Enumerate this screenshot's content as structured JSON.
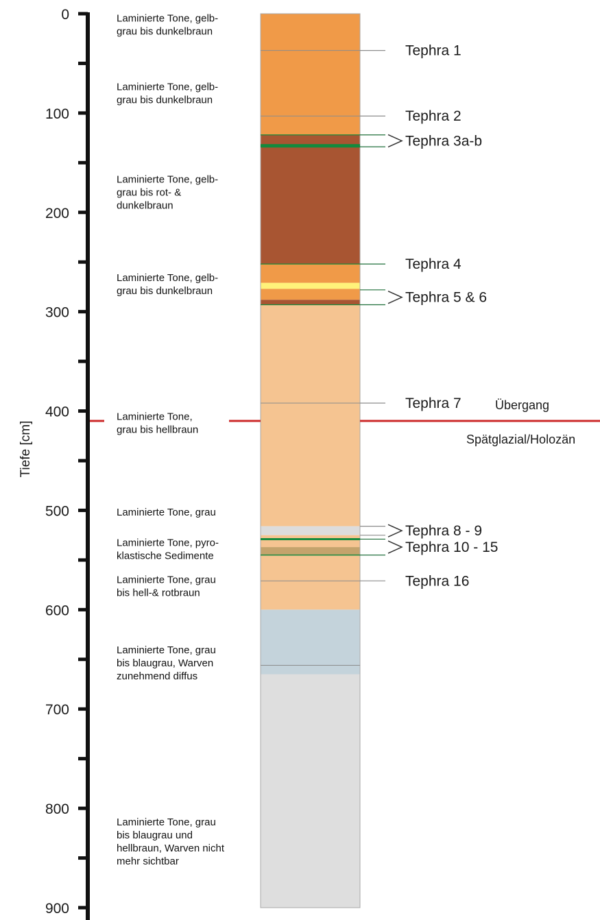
{
  "axis": {
    "title": "Tiefe  [cm]",
    "min": 0,
    "max": 900,
    "tick_labels": [
      "0",
      "100",
      "200",
      "300",
      "400",
      "500",
      "600",
      "700",
      "800",
      "900"
    ],
    "major_values": [
      0,
      100,
      200,
      300,
      400,
      500,
      600,
      700,
      800,
      900
    ],
    "minor_values": [
      50,
      150,
      250,
      350,
      450,
      550,
      650,
      750,
      850
    ]
  },
  "layers": [
    {
      "top": 0,
      "bottom": 122,
      "color": "#F09A48"
    },
    {
      "top": 122,
      "bottom": 252,
      "color": "#A85532"
    },
    {
      "top": 252,
      "bottom": 271,
      "color": "#F09A48"
    },
    {
      "top": 271,
      "bottom": 277,
      "color": "#FFF27A"
    },
    {
      "top": 277,
      "bottom": 288,
      "color": "#F09A48"
    },
    {
      "top": 288,
      "bottom": 293,
      "color": "#A85532"
    },
    {
      "top": 293,
      "bottom": 516,
      "color": "#F5C491"
    },
    {
      "top": 516,
      "bottom": 525,
      "color": "#DCDCDC"
    },
    {
      "top": 525,
      "bottom": 537,
      "color": "#F5C491"
    },
    {
      "top": 537,
      "bottom": 545,
      "color": "#C4A36C"
    },
    {
      "top": 545,
      "bottom": 600,
      "color": "#F5C491"
    },
    {
      "top": 600,
      "bottom": 665,
      "color": "#C4D3DB"
    },
    {
      "top": 665,
      "bottom": 900,
      "color": "#DEDEDE"
    }
  ],
  "thin_lines": [
    {
      "depth": 37,
      "color": "#8C8C8C"
    },
    {
      "depth": 103,
      "color": "#8C8C8C"
    },
    {
      "depth": 392,
      "color": "#8C8C8C"
    },
    {
      "depth": 571,
      "color": "#8C8C8C"
    },
    {
      "depth": 656,
      "color": "#8C8C8C"
    }
  ],
  "green_bands": [
    {
      "depth": 122,
      "thickness": 1.2
    },
    {
      "depth": 133,
      "thickness": 5
    },
    {
      "depth": 252,
      "thickness": 1.2
    },
    {
      "depth": 293,
      "thickness": 1.2
    },
    {
      "depth": 529,
      "thickness": 3
    },
    {
      "depth": 545,
      "thickness": 1.5
    }
  ],
  "tephra": [
    {
      "label": "Tephra 1",
      "depth": 37,
      "marker": "line",
      "line_color": "#8C8C8C"
    },
    {
      "label": "Tephra 2",
      "depth": 103,
      "marker": "line",
      "line_color": "#8C8C8C"
    },
    {
      "label": "Tephra 3a-b",
      "depth": 128,
      "marker": "bracket",
      "from": 122,
      "to": 134,
      "line_color": "#1F6F3A"
    },
    {
      "label": "Tephra 4",
      "depth": 252,
      "marker": "line",
      "line_color": "#1F6F3A"
    },
    {
      "label": "Tephra 5 & 6",
      "depth": 285,
      "marker": "bracket",
      "from": 278,
      "to": 293,
      "line_color": "#1F6F3A"
    },
    {
      "label": "Tephra 7",
      "depth": 392,
      "marker": "line",
      "line_color": "#8C8C8C"
    },
    {
      "label": "Tephra 8 - 9",
      "depth": 521,
      "marker": "bracket",
      "from": 516,
      "to": 525,
      "line_color": "#8C8C8C"
    },
    {
      "label": "Tephra 10 - 15",
      "depth": 537,
      "marker": "bracket",
      "from": 529,
      "to": 545,
      "line_color": "#1F6F3A"
    },
    {
      "label": "Tephra 16",
      "depth": 571,
      "marker": "line",
      "line_color": "#8C8C8C"
    }
  ],
  "descriptions": [
    {
      "depth": 15,
      "lines": [
        "Laminierte Tone, gelb-",
        "grau bis dunkelbraun"
      ]
    },
    {
      "depth": 84,
      "lines": [
        "Laminierte Tone, gelb-",
        "grau bis dunkelbraun"
      ]
    },
    {
      "depth": 177,
      "lines": [
        "Laminierte Tone, gelb-",
        "grau bis rot- &",
        "dunkelbraun"
      ]
    },
    {
      "depth": 276,
      "lines": [
        "Laminierte Tone, gelb-",
        "grau bis dunkelbraun"
      ]
    },
    {
      "depth": 416,
      "lines": [
        "Laminierte Tone,",
        "grau bis hellbraun"
      ]
    },
    {
      "depth": 512,
      "lines": [
        "Laminierte Tone, grau"
      ]
    },
    {
      "depth": 543,
      "lines": [
        "Laminierte Tone, pyro-",
        "klastische Sedimente"
      ]
    },
    {
      "depth": 580,
      "lines": [
        "Laminierte Tone, grau",
        "bis hell-& rotbraun"
      ]
    },
    {
      "depth": 651,
      "lines": [
        "Laminierte Tone, grau",
        "bis blaugrau, Warven",
        "zunehmend diffus"
      ]
    },
    {
      "depth": 824,
      "lines": [
        "Laminierte Tone, grau",
        "bis blaugrau und",
        "hellbraun, Warven nicht",
        "mehr sichtbar"
      ]
    }
  ],
  "boundary": {
    "depth": 410,
    "color": "#CC2A2A",
    "label_line1": "Übergang",
    "label_line2": "Spätglazial/Holozän"
  },
  "colors": {
    "axis": "#111111",
    "column_border": "#A8A8A8",
    "text": "#1a1a1a"
  }
}
